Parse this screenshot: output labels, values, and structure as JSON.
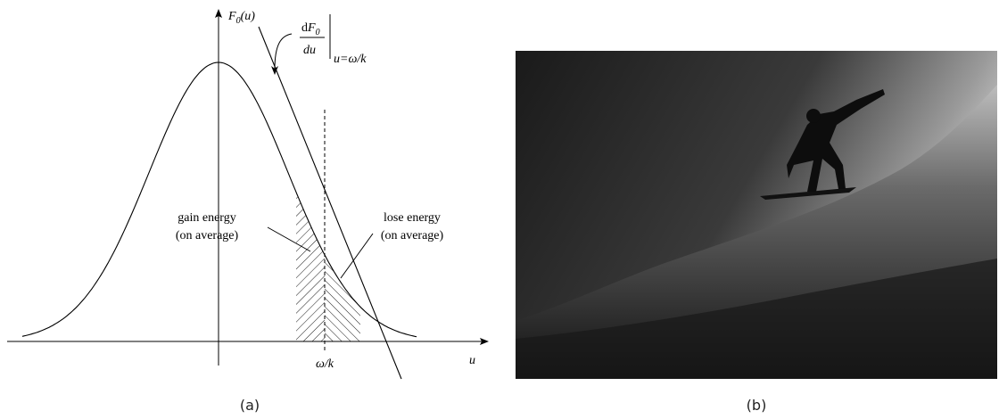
{
  "panel_a": {
    "y_axis_label": {
      "main": "F",
      "sub": "0",
      "arg": "(u)"
    },
    "derivative_label": {
      "num_d": "d",
      "num_f": "F",
      "num_sub": "0",
      "den": "du",
      "eval": "u=ω/k"
    },
    "gain_label": [
      "gain energy",
      "(on average)"
    ],
    "lose_label": [
      "lose energy",
      "(on average)"
    ],
    "x_tick": "ω/k",
    "x_axis_label": "u",
    "caption": "(a)"
  },
  "panel_b": {
    "caption": "(b)"
  }
}
